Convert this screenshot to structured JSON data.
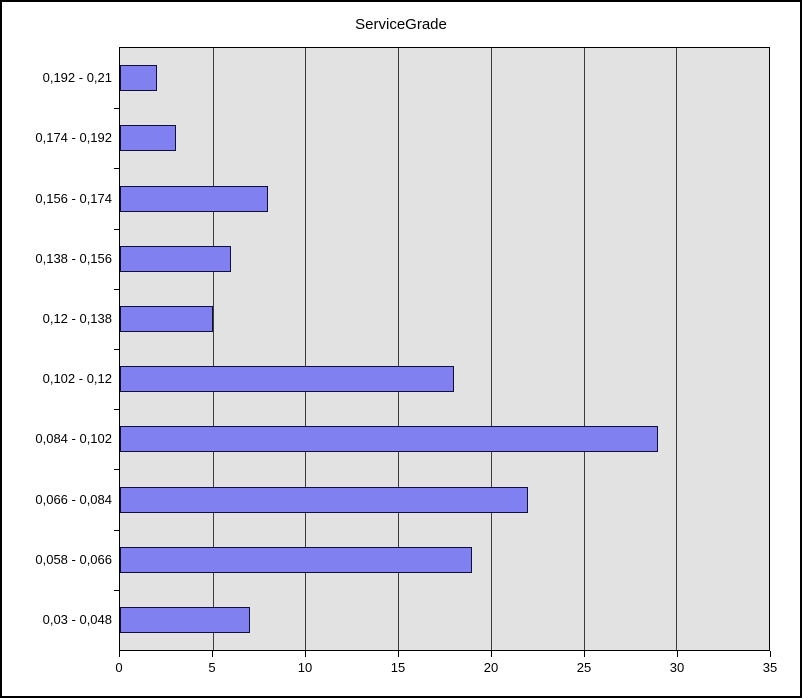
{
  "chart_data": {
    "type": "bar",
    "orientation": "horizontal",
    "title": "ServiceGrade",
    "categories": [
      "0,192 - 0,21",
      "0,174 - 0,192",
      "0,156 - 0,174",
      "0,138 - 0,156",
      "0,12 - 0,138",
      "0,102 - 0,12",
      "0,084 - 0,102",
      "0,066 - 0,084",
      "0,058 - 0,066",
      "0,03 - 0,048"
    ],
    "values": [
      2,
      3,
      8,
      6,
      5,
      18,
      29,
      22,
      19,
      7
    ],
    "xlabel": "",
    "ylabel": "",
    "xlim": [
      0,
      35
    ],
    "x_ticks": [
      0,
      5,
      10,
      15,
      20,
      25,
      30,
      35
    ],
    "grid": true,
    "legend": "none",
    "colors": {
      "bar_fill": "#8080f0",
      "bar_border": "#10103a",
      "plot_bg": "#e2e2e2",
      "grid_line": "#3c3c3c",
      "axis_line": "#000000",
      "frame_border": "#000000",
      "background": "#ffffff",
      "text": "#000000"
    }
  }
}
